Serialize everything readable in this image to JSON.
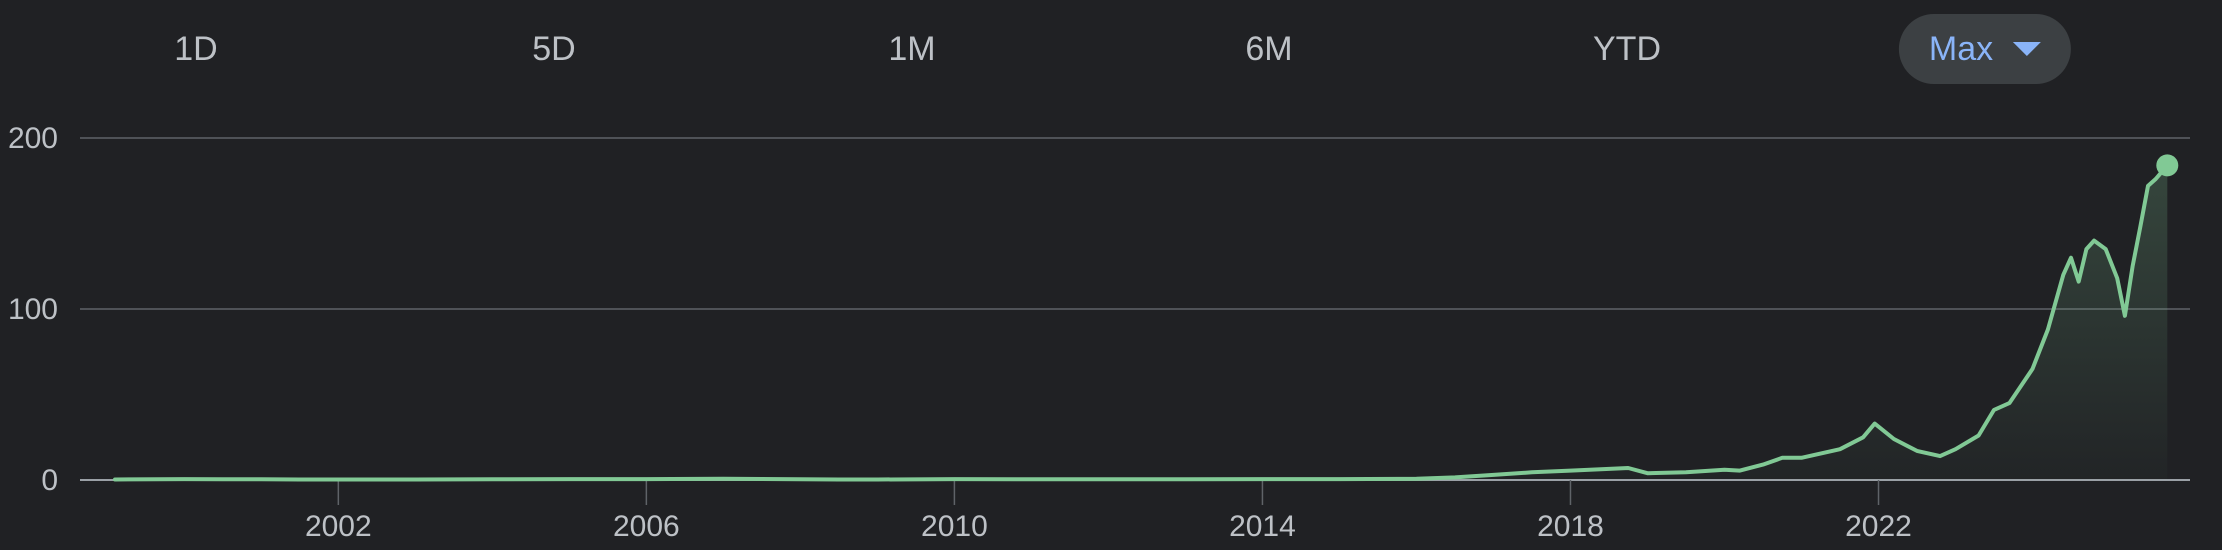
{
  "range_tabs": [
    {
      "label": "1D",
      "selected": false
    },
    {
      "label": "5D",
      "selected": false
    },
    {
      "label": "1M",
      "selected": false
    },
    {
      "label": "6M",
      "selected": false
    },
    {
      "label": "YTD",
      "selected": false
    },
    {
      "label": "Max",
      "selected": true
    }
  ],
  "colors": {
    "background": "#202124",
    "line": "#81c995",
    "grid": "#5f6368",
    "text": "#bdc1c6",
    "selected_tab_bg": "#3c4043",
    "selected_tab_text": "#8ab4f8"
  },
  "chart_data": {
    "type": "area",
    "title": "",
    "xlabel": "",
    "ylabel": "",
    "xlim": [
      1999.1,
      2025.85
    ],
    "ylim": [
      0,
      200
    ],
    "grid": true,
    "y_ticks": [
      0,
      100,
      200
    ],
    "y_tick_labels": [
      "0",
      "100",
      "200"
    ],
    "x_ticks": [
      2002,
      2006,
      2010,
      2014,
      2018,
      2022
    ],
    "x_tick_labels": [
      "2002",
      "2006",
      "2010",
      "2014",
      "2018",
      "2022"
    ],
    "series": [
      {
        "x": [
          1999.1,
          2000.0,
          2000.5,
          2001.0,
          2001.5,
          2002.0,
          2003.0,
          2004.0,
          2005.0,
          2006.0,
          2007.0,
          2007.5,
          2008.5,
          2009.0,
          2010.0,
          2011.0,
          2012.0,
          2013.0,
          2014.0,
          2015.0,
          2016.0,
          2016.5,
          2017.0,
          2017.5,
          2018.0,
          2018.5,
          2018.75,
          2019.0,
          2019.5,
          2020.0,
          2020.2,
          2020.5,
          2020.75,
          2021.0,
          2021.5,
          2021.8,
          2021.95,
          2022.2,
          2022.5,
          2022.8,
          2023.0,
          2023.3,
          2023.5,
          2023.7,
          2024.0,
          2024.2,
          2024.4,
          2024.5,
          2024.6,
          2024.7,
          2024.8,
          2024.95,
          2025.1,
          2025.2,
          2025.3,
          2025.4,
          2025.5,
          2025.6,
          2025.75
        ],
        "y": [
          0.3,
          0.5,
          0.4,
          0.4,
          0.3,
          0.3,
          0.3,
          0.4,
          0.5,
          0.5,
          0.7,
          0.6,
          0.3,
          0.3,
          0.5,
          0.4,
          0.4,
          0.4,
          0.5,
          0.5,
          0.7,
          1.5,
          3.0,
          4.5,
          5.5,
          6.5,
          7.0,
          4.0,
          4.5,
          6.0,
          5.5,
          9.0,
          13.0,
          13.0,
          18.0,
          25.0,
          33.0,
          24.0,
          17.0,
          14.0,
          18.0,
          26.0,
          41.0,
          45.0,
          65.0,
          88.0,
          120.0,
          130.0,
          116.0,
          135.0,
          140.0,
          135.0,
          118.0,
          96.0,
          125.0,
          148.0,
          172.0,
          176.0,
          184.0
        ]
      }
    ]
  }
}
